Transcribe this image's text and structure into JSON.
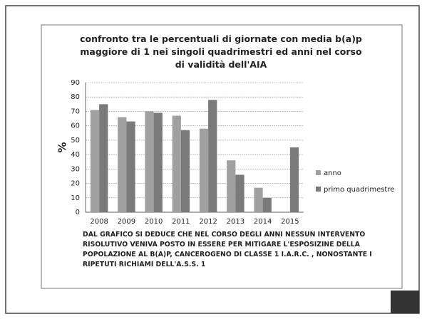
{
  "chart_data": {
    "type": "bar",
    "title": "confronto tra le percentuali di giornate con media  b(a)p maggiore di 1 nei singoli quadrimestri ed anni nel corso di validità dell'AIA",
    "y_label": "%",
    "annotation": "DAL GRAFICO SI DEDUCE CHE NEL CORSO DEGLI ANNI NESSUN INTERVENTO RISOLUTIVO VENIVA POSTO IN ESSERE PER MITIGARE L'ESPOSIZINE DELLA POPOLAZIONE AL B(A)P, CANCEROGENO DI CLASSE 1 I.A.R.C. , NONOSTANTE I RIPETUTI RICHIAMI DELL'A.S.S. 1",
    "categories": [
      "2008",
      "2009",
      "2010",
      "2011",
      "2012",
      "2013",
      "2014",
      "2015"
    ],
    "series": [
      {
        "name": "anno",
        "color": "#a0a0a0",
        "values": [
          71,
          66,
          70,
          67,
          58,
          36,
          17,
          null
        ]
      },
      {
        "name": "primo quadrimestre",
        "color": "#7a7a7a",
        "values": [
          75,
          63,
          69,
          57,
          78,
          26,
          10,
          45
        ]
      }
    ],
    "ylim": [
      0,
      90
    ],
    "yticks": [
      0,
      10,
      20,
      30,
      40,
      50,
      60,
      70,
      80,
      90
    ],
    "grid": true,
    "legend": "right"
  }
}
